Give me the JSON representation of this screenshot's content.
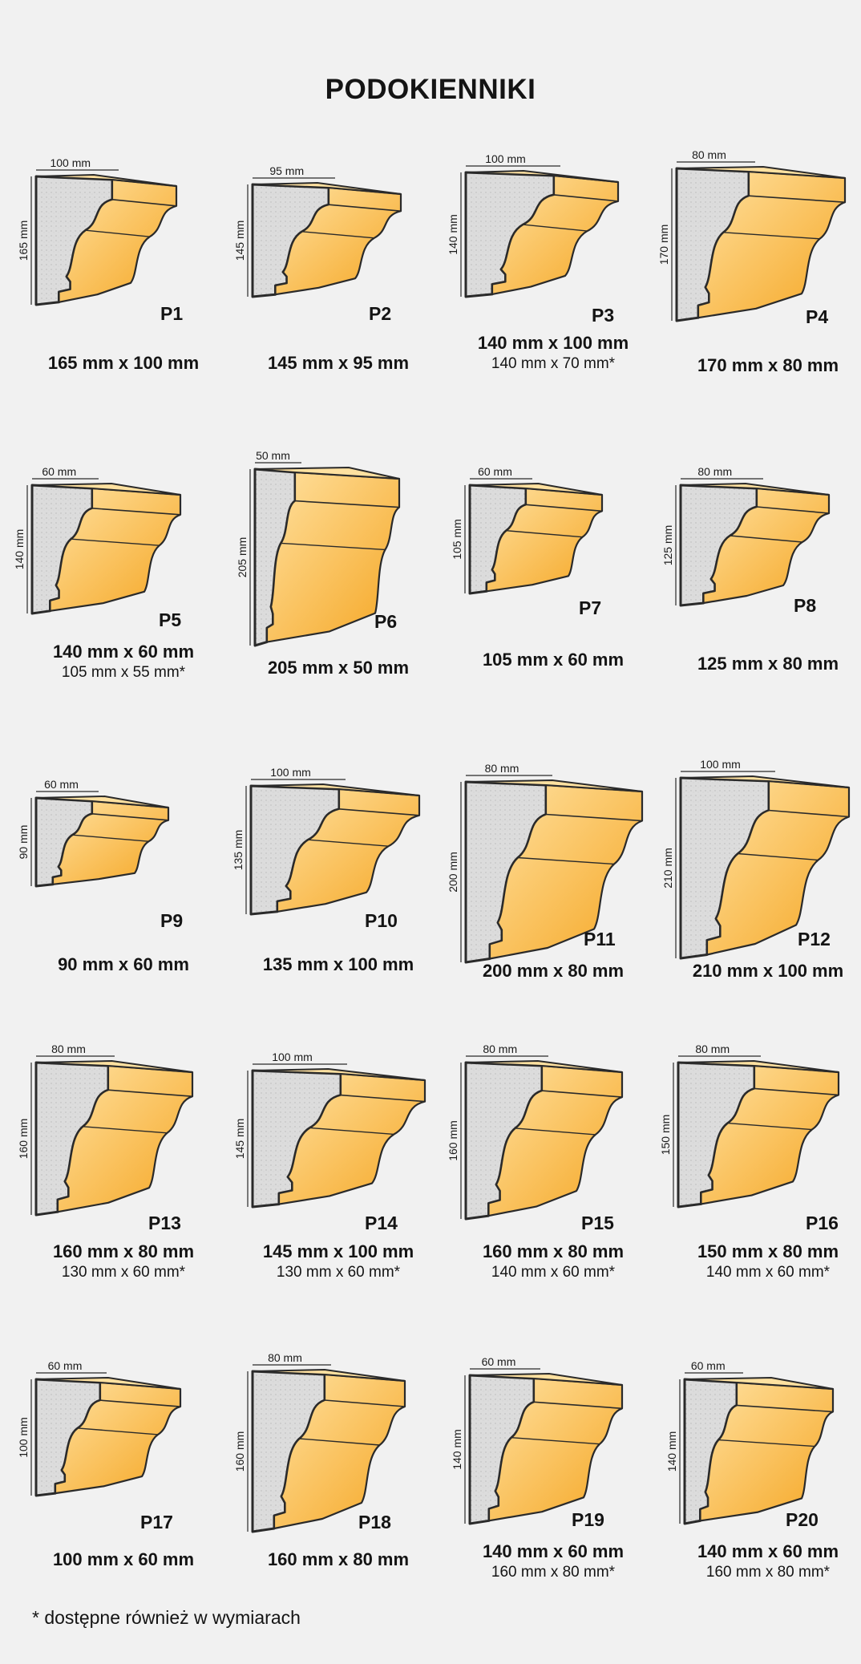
{
  "title": "PODOKIENNIKI",
  "colors": {
    "stone": "#dcdcdc",
    "face_light": "#ffe1a0",
    "face_dark": "#f5a623",
    "outline": "#2a2a2a",
    "background": "#f1f1f1"
  },
  "profiles": [
    {
      "code": "P1",
      "height_label": "165 mm",
      "depth_label": "100 mm",
      "main": "165 mm x 100 mm",
      "alt": ""
    },
    {
      "code": "P2",
      "height_label": "145 mm",
      "depth_label": "95 mm",
      "main": "145 mm x 95 mm",
      "alt": ""
    },
    {
      "code": "P3",
      "height_label": "140 mm",
      "depth_label": "100 mm",
      "main": "140 mm x 100 mm",
      "alt": "140 mm x 70 mm*"
    },
    {
      "code": "P4",
      "height_label": "170 mm",
      "depth_label": "80 mm",
      "main": "170 mm x 80 mm",
      "alt": ""
    },
    {
      "code": "P5",
      "height_label": "140 mm",
      "depth_label": "60 mm",
      "main": "140 mm x 60 mm",
      "alt": "105 mm x 55 mm*"
    },
    {
      "code": "P6",
      "height_label": "205 mm",
      "depth_label": "50 mm",
      "main": "205 mm x 50 mm",
      "alt": ""
    },
    {
      "code": "P7",
      "height_label": "105 mm",
      "depth_label": "60 mm",
      "main": "105 mm x 60 mm",
      "alt": ""
    },
    {
      "code": "P8",
      "height_label": "125 mm",
      "depth_label": "80 mm",
      "main": "125 mm x 80 mm",
      "alt": ""
    },
    {
      "code": "P9",
      "height_label": "90 mm",
      "depth_label": "60 mm",
      "main": "90 mm x 60 mm",
      "alt": ""
    },
    {
      "code": "P10",
      "height_label": "135 mm",
      "depth_label": "100 mm",
      "main": "135 mm x 100 mm",
      "alt": ""
    },
    {
      "code": "P11",
      "height_label": "200 mm",
      "depth_label": "80 mm",
      "main": "200 mm x 80 mm",
      "alt": ""
    },
    {
      "code": "P12",
      "height_label": "210 mm",
      "depth_label": "100 mm",
      "main": "210 mm x 100 mm",
      "alt": ""
    },
    {
      "code": "P13",
      "height_label": "160 mm",
      "depth_label": "80 mm",
      "main": "160 mm x 80 mm",
      "alt": "130 mm x 60 mm*"
    },
    {
      "code": "P14",
      "height_label": "145 mm",
      "depth_label": "100 mm",
      "main": "145 mm x 100 mm",
      "alt": "130 mm x 60 mm*"
    },
    {
      "code": "P15",
      "height_label": "160 mm",
      "depth_label": "80 mm",
      "main": "160 mm x 80 mm",
      "alt": "140 mm x 60 mm*"
    },
    {
      "code": "P16",
      "height_label": "150 mm",
      "depth_label": "80 mm",
      "main": "150 mm x 80 mm",
      "alt": "140 mm x 60 mm*"
    },
    {
      "code": "P17",
      "height_label": "100 mm",
      "depth_label": "60 mm",
      "main": "100 mm x 60 mm",
      "alt": ""
    },
    {
      "code": "P18",
      "height_label": "160 mm",
      "depth_label": "80 mm",
      "main": "160 mm x 80 mm",
      "alt": ""
    },
    {
      "code": "P19",
      "height_label": "140 mm",
      "depth_label": "60 mm",
      "main": "140 mm x 60 mm",
      "alt": "160 mm x 80 mm*"
    },
    {
      "code": "P20",
      "height_label": "140 mm",
      "depth_label": "60 mm",
      "main": "140 mm x 60 mm",
      "alt": "160 mm x 80 mm*"
    }
  ],
  "footnote": "* dostępne również w wymiarach"
}
